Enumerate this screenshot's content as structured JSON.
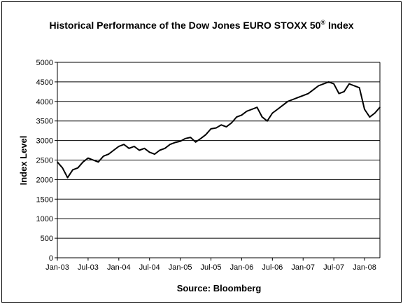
{
  "chart_data": {
    "type": "line",
    "title": "Historical Performance of the Dow Jones EURO STOXX 50",
    "title_superscript": "®",
    "title_suffix": " Index",
    "xlabel": "Source: Bloomberg",
    "ylabel": "Index Level",
    "ylim": [
      0,
      5000
    ],
    "yticks": [
      0,
      500,
      1000,
      1500,
      2000,
      2500,
      3000,
      3500,
      4000,
      4500,
      5000
    ],
    "xlim": [
      "2003-01",
      "2008-04"
    ],
    "xtick_labels": [
      "Jan-03",
      "Jul-03",
      "Jan-04",
      "Jul-04",
      "Jan-05",
      "Jul-05",
      "Jan-06",
      "Jul-06",
      "Jan-07",
      "Jul-07",
      "Jan-08"
    ],
    "grid": true,
    "legend": "none",
    "line_color": "#000000",
    "series": [
      {
        "x": [
          "2003-01",
          "2003-02",
          "2003-03",
          "2003-04",
          "2003-05",
          "2003-06",
          "2003-07",
          "2003-08",
          "2003-09",
          "2003-10",
          "2003-11",
          "2003-12",
          "2004-01",
          "2004-02",
          "2004-03",
          "2004-04",
          "2004-05",
          "2004-06",
          "2004-07",
          "2004-08",
          "2004-09",
          "2004-10",
          "2004-11",
          "2004-12",
          "2005-01",
          "2005-02",
          "2005-03",
          "2005-04",
          "2005-05",
          "2005-06",
          "2005-07",
          "2005-08",
          "2005-09",
          "2005-10",
          "2005-11",
          "2005-12",
          "2006-01",
          "2006-02",
          "2006-03",
          "2006-04",
          "2006-05",
          "2006-06",
          "2006-07",
          "2006-08",
          "2006-09",
          "2006-10",
          "2006-11",
          "2006-12",
          "2007-01",
          "2007-02",
          "2007-03",
          "2007-04",
          "2007-05",
          "2007-06",
          "2007-07",
          "2007-08",
          "2007-09",
          "2007-10",
          "2007-11",
          "2007-12",
          "2008-01",
          "2008-02",
          "2008-03",
          "2008-04"
        ],
        "values": [
          2450,
          2300,
          2050,
          2250,
          2300,
          2450,
          2550,
          2500,
          2450,
          2600,
          2650,
          2750,
          2850,
          2900,
          2800,
          2850,
          2750,
          2800,
          2700,
          2650,
          2750,
          2800,
          2900,
          2950,
          2980,
          3050,
          3080,
          2960,
          3050,
          3150,
          3300,
          3320,
          3400,
          3350,
          3450,
          3600,
          3650,
          3750,
          3800,
          3850,
          3600,
          3500,
          3700,
          3800,
          3900,
          4000,
          4050,
          4100,
          4150,
          4200,
          4300,
          4400,
          4450,
          4500,
          4450,
          4200,
          4250,
          4450,
          4400,
          4350,
          3800,
          3600,
          3700,
          3850
        ]
      }
    ]
  }
}
